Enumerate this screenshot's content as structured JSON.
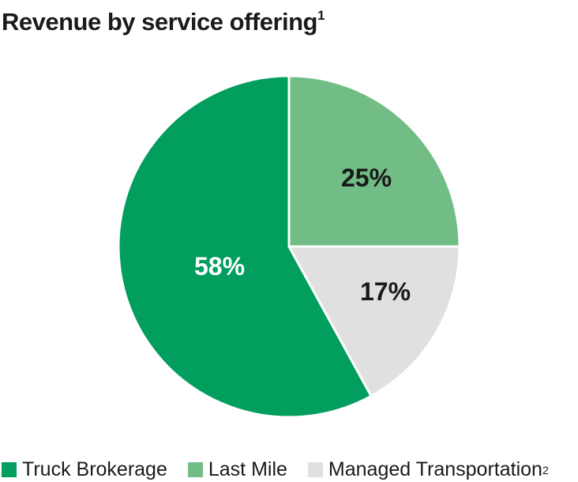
{
  "chart_data": {
    "type": "pie",
    "title": "Revenue by service offering",
    "title_footnote": "1",
    "slices": [
      {
        "name": "Truck Brokerage",
        "value": 58,
        "label": "58%",
        "color": "#019e5e",
        "label_color": "#ffffff"
      },
      {
        "name": "Last Mile",
        "value": 25,
        "label": "25%",
        "color": "#72bc86",
        "label_color": "#1a1a1a"
      },
      {
        "name": "Managed Transportation",
        "name_footnote": "2",
        "value": 17,
        "label": "17%",
        "color": "#e0e0e0",
        "label_color": "#1a1a1a"
      }
    ],
    "legend_position": "bottom"
  }
}
